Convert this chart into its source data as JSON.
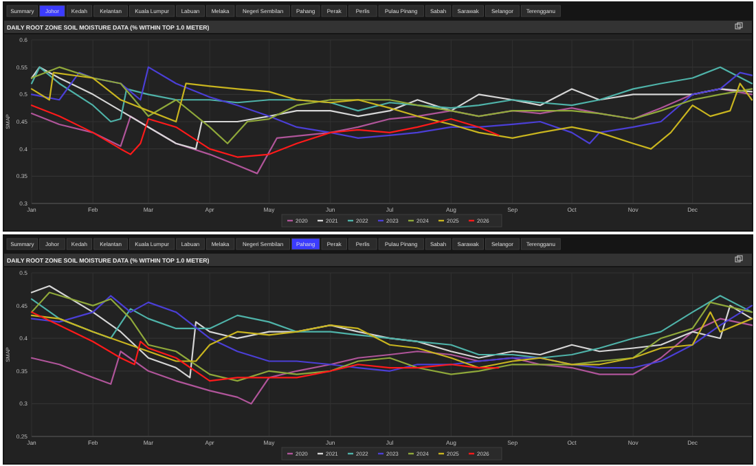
{
  "chart_data": [
    {
      "type": "line",
      "title": "DAILY ROOT ZONE SOIL MOISTURE DATA (% WITHIN TOP 1.0 METER)",
      "ylabel": "SMAP",
      "annotations": [
        "Summary",
        "Johor",
        "Kedah",
        "Kelantan",
        "Kuala Lumpur",
        "Labuan",
        "Melaka",
        "Negeri Sembilan",
        "Pahang",
        "Perak",
        "Perlis",
        "Pulau Pinang",
        "Sabah",
        "Sarawak",
        "Selangor",
        "Terengganu"
      ],
      "grid": true,
      "legend": "bottom",
      "marker": "none",
      "line_style": "solid",
      "xlim": [
        "--01-01",
        "--12-31"
      ],
      "xticks": [
        {
          "value": "--01-01",
          "label": "Jan"
        },
        {
          "value": "--02-01",
          "label": "Feb"
        },
        {
          "value": "--03-01",
          "label": "Mar"
        },
        {
          "value": "--04-01",
          "label": "Apr"
        },
        {
          "value": "--05-01",
          "label": "May"
        },
        {
          "value": "--06-01",
          "label": "Jun"
        },
        {
          "value": "--07-01",
          "label": "Jul"
        },
        {
          "value": "--08-01",
          "label": "Aug"
        },
        {
          "value": "--09-01",
          "label": "Sep"
        },
        {
          "value": "--10-01",
          "label": "Oct"
        },
        {
          "value": "--11-01",
          "label": "Nov"
        },
        {
          "value": "--12-01",
          "label": "Dec"
        }
      ],
      "ylim": [
        0.3,
        0.6
      ],
      "yticks": [
        0.3,
        0.35,
        0.4,
        0.45,
        0.5,
        0.55,
        0.6
      ],
      "series": [
        {
          "name": "2020",
          "color": "#b0559a",
          "x": [
            "--01-01",
            "--01-15",
            "--02-01",
            "--02-15",
            "--02-20",
            "--03-01",
            "--03-15",
            "--04-01",
            "--04-15",
            "--04-25",
            "--05-05",
            "--06-01",
            "--06-15",
            "--07-01",
            "--07-15",
            "--08-01",
            "--08-15",
            "--09-01",
            "--09-15",
            "--10-01",
            "--10-15",
            "--11-01",
            "--11-15",
            "--12-01",
            "--12-15",
            "--12-31"
          ],
          "values": [
            0.465,
            0.445,
            0.43,
            0.405,
            0.46,
            0.44,
            0.41,
            0.39,
            0.37,
            0.355,
            0.42,
            0.43,
            0.44,
            0.455,
            0.46,
            0.47,
            0.46,
            0.47,
            0.465,
            0.475,
            0.465,
            0.455,
            0.475,
            0.5,
            0.51,
            0.5
          ]
        },
        {
          "name": "2021",
          "color": "#d6d6d6",
          "x": [
            "--01-01",
            "--01-05",
            "--01-15",
            "--02-01",
            "--02-15",
            "--03-01",
            "--03-15",
            "--03-25",
            "--03-28",
            "--04-15",
            "--05-01",
            "--05-15",
            "--06-01",
            "--06-15",
            "--07-01",
            "--07-15",
            "--08-01",
            "--08-15",
            "--09-01",
            "--09-15",
            "--10-01",
            "--10-15",
            "--11-01",
            "--11-15",
            "--12-01",
            "--12-15",
            "--12-31"
          ],
          "values": [
            0.53,
            0.55,
            0.53,
            0.5,
            0.47,
            0.44,
            0.41,
            0.4,
            0.45,
            0.45,
            0.46,
            0.47,
            0.47,
            0.46,
            0.47,
            0.49,
            0.47,
            0.5,
            0.49,
            0.48,
            0.51,
            0.49,
            0.5,
            0.5,
            0.5,
            0.51,
            0.505
          ]
        },
        {
          "name": "2022",
          "color": "#4fb3a9",
          "x": [
            "--01-01",
            "--01-05",
            "--01-15",
            "--02-01",
            "--02-10",
            "--02-15",
            "--02-18",
            "--03-01",
            "--03-15",
            "--04-01",
            "--04-15",
            "--05-01",
            "--05-15",
            "--06-01",
            "--06-15",
            "--07-01",
            "--07-15",
            "--08-01",
            "--08-15",
            "--09-01",
            "--09-15",
            "--10-01",
            "--10-15",
            "--11-01",
            "--11-15",
            "--12-01",
            "--12-15",
            "--12-31"
          ],
          "values": [
            0.52,
            0.55,
            0.52,
            0.48,
            0.45,
            0.455,
            0.51,
            0.5,
            0.49,
            0.49,
            0.485,
            0.49,
            0.49,
            0.485,
            0.47,
            0.485,
            0.48,
            0.475,
            0.48,
            0.49,
            0.485,
            0.48,
            0.49,
            0.51,
            0.52,
            0.53,
            0.55,
            0.52
          ]
        },
        {
          "name": "2023",
          "color": "#4b3fd6",
          "x": [
            "--01-01",
            "--01-15",
            "--01-25",
            "--02-01",
            "--02-15",
            "--02-25",
            "--03-01",
            "--03-15",
            "--04-01",
            "--04-15",
            "--05-01",
            "--05-15",
            "--06-01",
            "--06-15",
            "--07-01",
            "--07-15",
            "--08-01",
            "--08-15",
            "--09-01",
            "--09-15",
            "--10-01",
            "--10-10",
            "--10-15",
            "--11-01",
            "--11-15",
            "--12-01",
            "--12-15",
            "--12-25",
            "--12-31"
          ],
          "values": [
            0.5,
            0.49,
            0.54,
            0.53,
            0.52,
            0.49,
            0.55,
            0.52,
            0.495,
            0.48,
            0.46,
            0.44,
            0.43,
            0.42,
            0.425,
            0.43,
            0.44,
            0.44,
            0.445,
            0.45,
            0.43,
            0.41,
            0.43,
            0.44,
            0.45,
            0.5,
            0.51,
            0.54,
            0.535
          ]
        },
        {
          "name": "2024",
          "color": "#8fa83a",
          "x": [
            "--01-01",
            "--01-15",
            "--02-01",
            "--02-15",
            "--03-01",
            "--03-15",
            "--04-01",
            "--04-10",
            "--04-20",
            "--05-01",
            "--05-15",
            "--06-01",
            "--06-15",
            "--07-01",
            "--07-15",
            "--08-01",
            "--08-15",
            "--09-01",
            "--09-15",
            "--10-01",
            "--10-15",
            "--11-01",
            "--11-15",
            "--12-01",
            "--12-15",
            "--12-31"
          ],
          "values": [
            0.53,
            0.55,
            0.53,
            0.52,
            0.46,
            0.49,
            0.44,
            0.41,
            0.45,
            0.455,
            0.48,
            0.49,
            0.49,
            0.49,
            0.48,
            0.47,
            0.46,
            0.47,
            0.47,
            0.47,
            0.465,
            0.455,
            0.47,
            0.49,
            0.5,
            0.51
          ]
        },
        {
          "name": "2025",
          "color": "#c9b51f",
          "x": [
            "--01-01",
            "--01-10",
            "--01-12",
            "--02-01",
            "--02-15",
            "--03-01",
            "--03-15",
            "--03-20",
            "--04-01",
            "--04-15",
            "--05-01",
            "--05-15",
            "--06-01",
            "--06-15",
            "--07-01",
            "--07-15",
            "--08-01",
            "--08-15",
            "--09-01",
            "--09-15",
            "--10-01",
            "--10-15",
            "--11-01",
            "--11-10",
            "--11-20",
            "--12-01",
            "--12-10",
            "--12-20",
            "--12-25",
            "--12-31"
          ],
          "values": [
            0.51,
            0.49,
            0.54,
            0.53,
            0.49,
            0.47,
            0.45,
            0.52,
            0.515,
            0.51,
            0.505,
            0.49,
            0.485,
            0.49,
            0.475,
            0.46,
            0.445,
            0.43,
            0.42,
            0.43,
            0.44,
            0.43,
            0.41,
            0.4,
            0.43,
            0.48,
            0.46,
            0.47,
            0.52,
            0.49
          ]
        },
        {
          "name": "2026",
          "color": "#ff1a1a",
          "x": [
            "--01-01",
            "--01-15",
            "--02-01",
            "--02-15",
            "--02-20",
            "--02-25",
            "--03-01",
            "--03-15",
            "--04-01",
            "--04-15",
            "--05-01",
            "--05-15",
            "--06-01",
            "--06-15",
            "--07-01",
            "--07-15",
            "--08-01",
            "--08-15",
            "--08-25"
          ],
          "values": [
            0.48,
            0.46,
            0.43,
            0.4,
            0.39,
            0.41,
            0.455,
            0.44,
            0.4,
            0.385,
            0.39,
            0.41,
            0.43,
            0.435,
            0.43,
            0.44,
            0.455,
            0.44,
            0.425
          ]
        }
      ]
    },
    {
      "type": "line",
      "title": "DAILY ROOT ZONE SOIL MOISTURE DATA (% WITHIN TOP 1.0 METER)",
      "ylabel": "SMAP",
      "annotations": [
        "Summary",
        "Johor",
        "Kedah",
        "Kelantan",
        "Kuala Lumpur",
        "Labuan",
        "Melaka",
        "Negeri Sembilan",
        "Pahang",
        "Perak",
        "Perlis",
        "Pulau Pinang",
        "Sabah",
        "Sarawak",
        "Selangor",
        "Terengganu"
      ],
      "grid": true,
      "legend": "bottom",
      "marker": "none",
      "line_style": "solid",
      "xlim": [
        "--01-01",
        "--12-31"
      ],
      "xticks": [
        {
          "value": "--01-01",
          "label": "Jan"
        },
        {
          "value": "--02-01",
          "label": "Feb"
        },
        {
          "value": "--03-01",
          "label": "Mar"
        },
        {
          "value": "--04-01",
          "label": "Apr"
        },
        {
          "value": "--05-01",
          "label": "May"
        },
        {
          "value": "--06-01",
          "label": "Jun"
        },
        {
          "value": "--07-01",
          "label": "Jul"
        },
        {
          "value": "--08-01",
          "label": "Aug"
        },
        {
          "value": "--09-01",
          "label": "Sep"
        },
        {
          "value": "--10-01",
          "label": "Oct"
        },
        {
          "value": "--11-01",
          "label": "Nov"
        },
        {
          "value": "--12-01",
          "label": "Dec"
        }
      ],
      "ylim": [
        0.25,
        0.5
      ],
      "yticks": [
        0.25,
        0.3,
        0.35,
        0.4,
        0.45,
        0.5
      ],
      "series": [
        {
          "name": "2020",
          "color": "#b0559a",
          "x": [
            "--01-01",
            "--01-15",
            "--02-01",
            "--02-10",
            "--02-15",
            "--03-01",
            "--03-15",
            "--04-01",
            "--04-15",
            "--04-22",
            "--05-01",
            "--05-15",
            "--06-01",
            "--06-15",
            "--07-01",
            "--07-15",
            "--08-01",
            "--08-15",
            "--09-01",
            "--09-15",
            "--10-01",
            "--10-15",
            "--11-01",
            "--11-15",
            "--12-01",
            "--12-15",
            "--12-31"
          ],
          "values": [
            0.37,
            0.36,
            0.34,
            0.33,
            0.38,
            0.35,
            0.335,
            0.32,
            0.31,
            0.3,
            0.34,
            0.35,
            0.36,
            0.37,
            0.375,
            0.38,
            0.375,
            0.365,
            0.37,
            0.36,
            0.355,
            0.345,
            0.345,
            0.37,
            0.41,
            0.43,
            0.42
          ]
        },
        {
          "name": "2021",
          "color": "#d6d6d6",
          "x": [
            "--01-01",
            "--01-10",
            "--02-01",
            "--02-15",
            "--03-01",
            "--03-15",
            "--03-22",
            "--03-25",
            "--04-01",
            "--04-15",
            "--05-01",
            "--05-15",
            "--06-01",
            "--06-15",
            "--07-01",
            "--07-15",
            "--08-01",
            "--08-15",
            "--09-01",
            "--09-15",
            "--10-01",
            "--10-15",
            "--11-01",
            "--11-15",
            "--12-01",
            "--12-15",
            "--12-20",
            "--12-31"
          ],
          "values": [
            0.47,
            0.48,
            0.44,
            0.41,
            0.37,
            0.355,
            0.34,
            0.425,
            0.41,
            0.4,
            0.41,
            0.41,
            0.42,
            0.41,
            0.4,
            0.395,
            0.38,
            0.37,
            0.38,
            0.375,
            0.39,
            0.38,
            0.385,
            0.39,
            0.41,
            0.4,
            0.45,
            0.43
          ]
        },
        {
          "name": "2022",
          "color": "#4fb3a9",
          "x": [
            "--01-01",
            "--01-15",
            "--02-01",
            "--02-10",
            "--02-20",
            "--03-01",
            "--03-15",
            "--04-01",
            "--04-15",
            "--05-01",
            "--05-15",
            "--06-01",
            "--06-15",
            "--07-01",
            "--07-15",
            "--08-01",
            "--08-15",
            "--09-01",
            "--09-15",
            "--10-01",
            "--10-15",
            "--11-01",
            "--11-15",
            "--12-01",
            "--12-15",
            "--12-31"
          ],
          "values": [
            0.46,
            0.43,
            0.41,
            0.4,
            0.445,
            0.43,
            0.415,
            0.415,
            0.435,
            0.425,
            0.41,
            0.41,
            0.405,
            0.4,
            0.395,
            0.39,
            0.375,
            0.375,
            0.37,
            0.375,
            0.385,
            0.4,
            0.41,
            0.44,
            0.465,
            0.44
          ]
        },
        {
          "name": "2023",
          "color": "#4b3fd6",
          "x": [
            "--01-01",
            "--01-15",
            "--02-01",
            "--02-10",
            "--02-20",
            "--03-01",
            "--03-15",
            "--04-01",
            "--04-15",
            "--05-01",
            "--05-15",
            "--06-01",
            "--06-15",
            "--07-01",
            "--07-15",
            "--08-01",
            "--08-15",
            "--09-01",
            "--09-15",
            "--10-01",
            "--10-15",
            "--11-01",
            "--11-15",
            "--12-01",
            "--12-15",
            "--12-31"
          ],
          "values": [
            0.43,
            0.425,
            0.44,
            0.465,
            0.44,
            0.455,
            0.44,
            0.4,
            0.38,
            0.365,
            0.365,
            0.36,
            0.355,
            0.35,
            0.36,
            0.36,
            0.365,
            0.37,
            0.37,
            0.36,
            0.355,
            0.355,
            0.365,
            0.39,
            0.42,
            0.45
          ]
        },
        {
          "name": "2024",
          "color": "#8fa83a",
          "x": [
            "--01-01",
            "--01-10",
            "--02-01",
            "--02-10",
            "--02-20",
            "--03-01",
            "--03-15",
            "--04-01",
            "--04-15",
            "--05-01",
            "--05-15",
            "--06-01",
            "--06-15",
            "--07-01",
            "--07-15",
            "--08-01",
            "--08-15",
            "--09-01",
            "--09-15",
            "--10-01",
            "--10-15",
            "--11-01",
            "--11-15",
            "--12-01",
            "--12-10",
            "--12-31"
          ],
          "values": [
            0.44,
            0.47,
            0.45,
            0.46,
            0.43,
            0.39,
            0.38,
            0.345,
            0.335,
            0.35,
            0.345,
            0.35,
            0.365,
            0.37,
            0.355,
            0.345,
            0.35,
            0.36,
            0.36,
            0.36,
            0.365,
            0.37,
            0.4,
            0.415,
            0.455,
            0.44
          ]
        },
        {
          "name": "2025",
          "color": "#c9b51f",
          "x": [
            "--01-01",
            "--01-15",
            "--02-01",
            "--02-15",
            "--03-01",
            "--03-15",
            "--03-25",
            "--04-01",
            "--04-15",
            "--05-01",
            "--05-15",
            "--06-01",
            "--06-15",
            "--07-01",
            "--07-15",
            "--08-01",
            "--08-15",
            "--09-01",
            "--09-15",
            "--10-01",
            "--10-15",
            "--11-01",
            "--11-15",
            "--12-01",
            "--12-10",
            "--12-15",
            "--12-31"
          ],
          "values": [
            0.435,
            0.43,
            0.41,
            0.395,
            0.38,
            0.365,
            0.365,
            0.39,
            0.41,
            0.405,
            0.41,
            0.42,
            0.415,
            0.39,
            0.385,
            0.37,
            0.355,
            0.365,
            0.37,
            0.36,
            0.36,
            0.37,
            0.385,
            0.39,
            0.44,
            0.41,
            0.43
          ]
        },
        {
          "name": "2026",
          "color": "#ff1a1a",
          "x": [
            "--01-01",
            "--01-15",
            "--02-01",
            "--02-15",
            "--02-22",
            "--02-25",
            "--03-01",
            "--03-15",
            "--04-01",
            "--04-15",
            "--05-01",
            "--05-15",
            "--06-01",
            "--06-15",
            "--07-01",
            "--07-15",
            "--08-01",
            "--08-15",
            "--08-25"
          ],
          "values": [
            0.44,
            0.42,
            0.395,
            0.37,
            0.36,
            0.395,
            0.385,
            0.37,
            0.335,
            0.34,
            0.34,
            0.34,
            0.35,
            0.36,
            0.355,
            0.355,
            0.36,
            0.355,
            0.355
          ]
        }
      ]
    }
  ]
}
